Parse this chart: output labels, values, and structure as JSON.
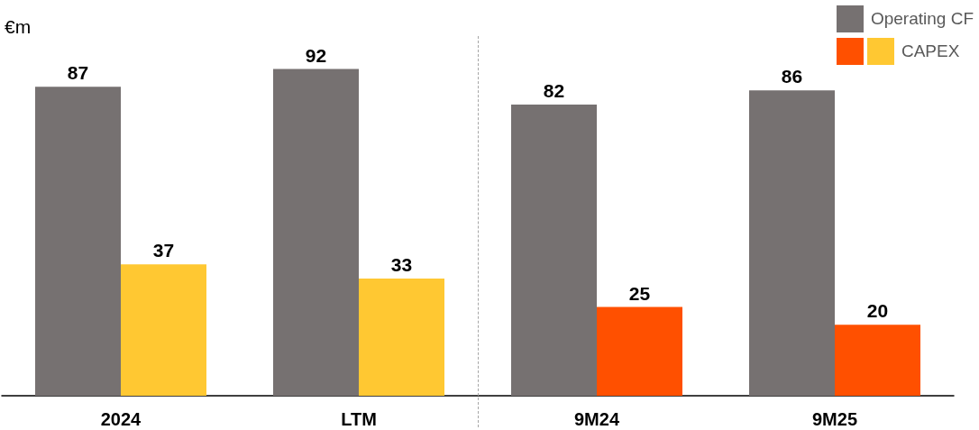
{
  "chart_data": {
    "type": "bar",
    "ylabel": "€m",
    "categories": [
      "2024",
      "LTM",
      "9M24",
      "9M25"
    ],
    "series": [
      {
        "name": "Operating CF",
        "color": "#767171",
        "values": [
          87,
          92,
          82,
          86
        ]
      },
      {
        "name": "CAPEX",
        "color": "#ff5000",
        "colors": [
          "#ffc832",
          "#ffc832",
          "#ff5000",
          "#ff5000"
        ],
        "values": [
          37,
          33,
          25,
          20
        ]
      }
    ],
    "data_labels": true,
    "legend": "top right"
  }
}
